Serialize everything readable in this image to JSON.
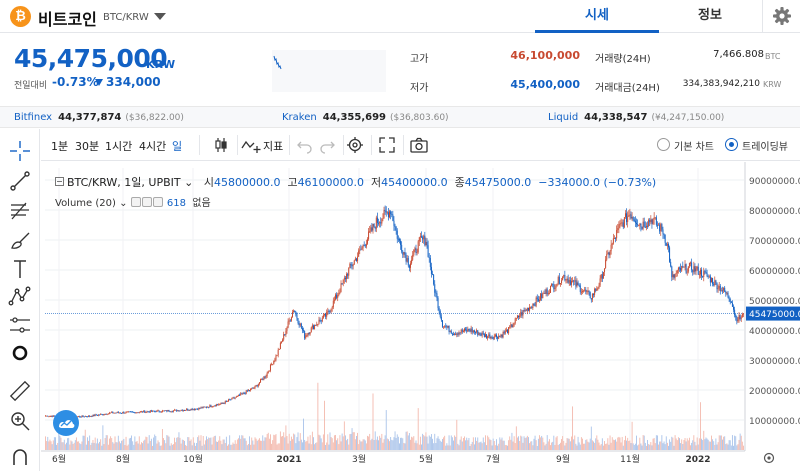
{
  "header": {
    "coin_logo": "₿",
    "coin_name": "비트코인",
    "pair": "BTC/KRW",
    "tabs": [
      {
        "label": "시세",
        "active": true
      },
      {
        "label": "정보",
        "active": false
      }
    ],
    "settings_icon": "gear-icon"
  },
  "ticker": {
    "price": "45,475,000",
    "unit": "KRW",
    "change_label": "전일대비",
    "change_pct": "-0.73%",
    "change_abs": "334,000",
    "change_direction": "down",
    "high_label": "고가",
    "high": "46,100,000",
    "low_label": "저가",
    "low": "45,400,000",
    "volume_label": "거래량(24H)",
    "volume": "7,466.808",
    "volume_unit": "BTC",
    "trade_value_label": "거래대금(24H)",
    "trade_value": "334,383,942,210",
    "trade_value_unit": "KRW",
    "colors": {
      "up": "#c84a31",
      "down": "#1261c4"
    }
  },
  "exchanges": [
    {
      "name": "Bitfinex",
      "price": "44,377,874",
      "diff": "($36,822.00)"
    },
    {
      "name": "Kraken",
      "price": "44,355,699",
      "diff": "($36,803.60)"
    },
    {
      "name": "Liquid",
      "price": "44,338,547",
      "diff": "(¥4,247,150.00)"
    }
  ],
  "draw_tools": [
    "crosshair-icon",
    "trend-line-icon",
    "fib-icon",
    "brush-icon",
    "text-icon",
    "pattern-icon",
    "measure-icon",
    "circle-icon",
    "ruler-icon",
    "zoom-in-icon",
    "magnet-icon"
  ],
  "toolbar": {
    "timeframes": [
      {
        "label": "1분",
        "active": false
      },
      {
        "label": "30분",
        "active": false
      },
      {
        "label": "1시간",
        "active": false
      },
      {
        "label": "4시간",
        "active": false
      },
      {
        "label": "일",
        "active": true
      }
    ],
    "indicator_label": "지표",
    "basic_chart_label": "기본 차트",
    "tradingview_label": "트레이딩뷰",
    "selected_view": "tradingview"
  },
  "legend": {
    "symbol": "BTC/KRW, 1일, UPBIT",
    "open_label": "시",
    "open": "45800000.0",
    "high_label": "고",
    "high": "46100000.0",
    "low_label": "저",
    "low": "45400000.0",
    "close_label": "종",
    "close": "45475000.0",
    "change": "−334000.0 (−0.73%)",
    "volume_label": "Volume (20)",
    "volume_value": "618",
    "volume_extra": "없음"
  },
  "chart_data": {
    "type": "candlestick",
    "x_labels": [
      "6월",
      "8월",
      "10월",
      "2021",
      "3월",
      "5월",
      "7월",
      "9월",
      "11월",
      "2022"
    ],
    "y_ticks": [
      "90000000.0",
      "80000000.0",
      "70000000.0",
      "60000000.0",
      "50000000.0",
      "40000000.0",
      "30000000.0",
      "20000000.0",
      "10000000.0"
    ],
    "ylim": [
      0,
      94000000
    ],
    "last_price_label": "45475000.0",
    "last_price": 45475000,
    "close_keypoints": [
      [
        0,
        11400000
      ],
      [
        20,
        11000000
      ],
      [
        40,
        11300000
      ],
      [
        60,
        12400000
      ],
      [
        80,
        12600000
      ],
      [
        100,
        12900000
      ],
      [
        120,
        13200000
      ],
      [
        140,
        13900000
      ],
      [
        160,
        15500000
      ],
      [
        175,
        18000000
      ],
      [
        190,
        21000000
      ],
      [
        200,
        25000000
      ],
      [
        210,
        32000000
      ],
      [
        218,
        40000000
      ],
      [
        225,
        47000000
      ],
      [
        235,
        38000000
      ],
      [
        245,
        42000000
      ],
      [
        255,
        45000000
      ],
      [
        265,
        52000000
      ],
      [
        275,
        60000000
      ],
      [
        285,
        66000000
      ],
      [
        300,
        76000000
      ],
      [
        313,
        80000000
      ],
      [
        320,
        70000000
      ],
      [
        330,
        62000000
      ],
      [
        340,
        70000000
      ],
      [
        345,
        70000000
      ],
      [
        352,
        55000000
      ],
      [
        360,
        42000000
      ],
      [
        370,
        39000000
      ],
      [
        385,
        40000000
      ],
      [
        400,
        38000000
      ],
      [
        412,
        38000000
      ],
      [
        420,
        40000000
      ],
      [
        430,
        45000000
      ],
      [
        440,
        48000000
      ],
      [
        455,
        53000000
      ],
      [
        470,
        58000000
      ],
      [
        485,
        54000000
      ],
      [
        495,
        51000000
      ],
      [
        503,
        56000000
      ],
      [
        510,
        65000000
      ],
      [
        520,
        74000000
      ],
      [
        530,
        79000000
      ],
      [
        540,
        75000000
      ],
      [
        550,
        77000000
      ],
      [
        560,
        73000000
      ],
      [
        565,
        67000000
      ],
      [
        568,
        57000000
      ],
      [
        575,
        60000000
      ],
      [
        585,
        61000000
      ],
      [
        600,
        58000000
      ],
      [
        615,
        53000000
      ],
      [
        622,
        50000000
      ],
      [
        626,
        44000000
      ],
      [
        630,
        44000000
      ],
      [
        633,
        45475000
      ]
    ],
    "volume_level": 0.5
  }
}
